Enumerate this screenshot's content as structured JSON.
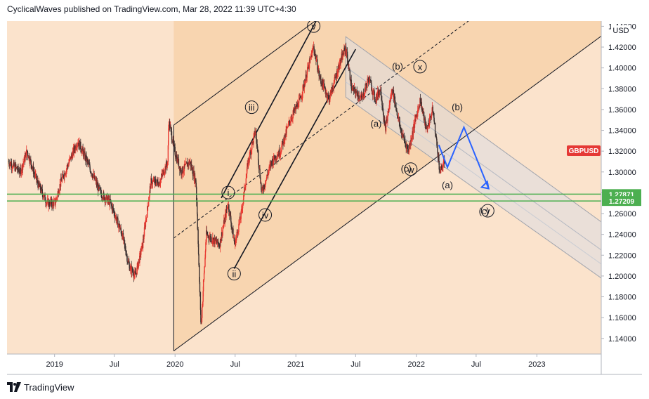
{
  "header": {
    "publisher": "CyclicalWaves published on TradingView.com, Mar 28, 2022 11:39 UTC+4:30"
  },
  "footer": {
    "brand": "TradingView"
  },
  "colors": {
    "candle_up": "#e8372f",
    "candle_down": "#3a2f2f",
    "bg_shade": "#fbe3cc",
    "channel_shade": "#f8d5b0",
    "forecast_channel": "#dcdde2",
    "support_line": "#4caf50",
    "projection": "#2962ff",
    "symbol_badge": "#e53935"
  },
  "chart_data": {
    "type": "candlestick",
    "symbol": "GBPUSD",
    "currency": "USD",
    "y_ticks": [
      "1.14000",
      "1.16000",
      "1.18000",
      "1.20000",
      "1.22000",
      "1.24000",
      "1.26000",
      "1.28000",
      "1.30000",
      "1.32000",
      "1.34000",
      "1.36000",
      "1.38000",
      "1.40000",
      "1.42000",
      "1.44000"
    ],
    "x_ticks": [
      "2019",
      "Jul",
      "2020",
      "Jul",
      "2021",
      "Jul",
      "2022",
      "Jul",
      "2023"
    ],
    "ylim": [
      1.125,
      1.445
    ],
    "x_range": [
      "2018-08-10",
      "2023-07-15"
    ],
    "price_labels": [
      {
        "value": 1.27871,
        "text": "1.27871"
      },
      {
        "value": 1.27209,
        "text": "1.27209"
      }
    ],
    "last_price_badge": "GBPUSD",
    "price_path": [
      [
        "2018-08-15",
        1.31
      ],
      [
        "2018-09-20",
        1.3
      ],
      [
        "2018-10-10",
        1.32
      ],
      [
        "2018-11-10",
        1.29
      ],
      [
        "2018-12-10",
        1.27
      ],
      [
        "2019-01-03",
        1.27
      ],
      [
        "2019-01-20",
        1.29
      ],
      [
        "2019-03-13",
        1.33
      ],
      [
        "2019-04-10",
        1.31
      ],
      [
        "2019-05-20",
        1.28
      ],
      [
        "2019-06-20",
        1.27
      ],
      [
        "2019-07-25",
        1.24
      ],
      [
        "2019-08-15",
        1.21
      ],
      [
        "2019-09-03",
        1.2
      ],
      [
        "2019-09-25",
        1.23
      ],
      [
        "2019-10-20",
        1.29
      ],
      [
        "2019-11-15",
        1.29
      ],
      [
        "2019-12-10",
        1.31
      ],
      [
        "2019-12-13",
        1.35
      ],
      [
        "2019-12-31",
        1.32
      ],
      [
        "2020-01-20",
        1.3
      ],
      [
        "2020-02-15",
        1.31
      ],
      [
        "2020-03-05",
        1.29
      ],
      [
        "2020-03-20",
        1.15
      ],
      [
        "2020-04-05",
        1.24
      ],
      [
        "2020-05-15",
        1.23
      ],
      [
        "2020-06-10",
        1.27
      ],
      [
        "2020-06-30",
        1.23
      ],
      [
        "2020-07-20",
        1.26
      ],
      [
        "2020-08-10",
        1.31
      ],
      [
        "2020-09-01",
        1.34
      ],
      [
        "2020-09-20",
        1.28
      ],
      [
        "2020-10-20",
        1.31
      ],
      [
        "2020-11-15",
        1.32
      ],
      [
        "2020-12-15",
        1.35
      ],
      [
        "2021-01-15",
        1.37
      ],
      [
        "2021-02-24",
        1.42
      ],
      [
        "2021-03-15",
        1.39
      ],
      [
        "2021-04-12",
        1.37
      ],
      [
        "2021-05-10",
        1.4
      ],
      [
        "2021-06-01",
        1.42
      ],
      [
        "2021-06-20",
        1.38
      ],
      [
        "2021-07-20",
        1.37
      ],
      [
        "2021-08-10",
        1.39
      ],
      [
        "2021-08-30",
        1.37
      ],
      [
        "2021-09-15",
        1.38
      ],
      [
        "2021-09-29",
        1.34
      ],
      [
        "2021-10-20",
        1.38
      ],
      [
        "2021-11-15",
        1.34
      ],
      [
        "2021-12-08",
        1.32
      ],
      [
        "2022-01-13",
        1.37
      ],
      [
        "2022-02-01",
        1.34
      ],
      [
        "2022-02-20",
        1.36
      ],
      [
        "2022-03-14",
        1.3
      ],
      [
        "2022-03-28",
        1.31
      ]
    ],
    "wave_labels": [
      {
        "text": "v",
        "circled": true,
        "date": "2021-02-24",
        "price": 1.4375
      },
      {
        "text": "iii",
        "circled": true,
        "date": "2020-08-20",
        "price": 1.3595
      },
      {
        "text": "i",
        "circled": true,
        "date": "2020-06-10",
        "price": 1.2775
      },
      {
        "text": "iv",
        "circled": true,
        "date": "2020-09-30",
        "price": 1.256
      },
      {
        "text": "ii",
        "circled": true,
        "date": "2020-06-28",
        "price": 1.1995
      },
      {
        "text": "x",
        "circled": true,
        "date": "2022-01-12",
        "price": 1.3985
      },
      {
        "text": "w",
        "circled": true,
        "date": "2021-12-15",
        "price": 1.3
      },
      {
        "text": "y",
        "circled": true,
        "date": "2022-08-05",
        "price": 1.26
      },
      {
        "text": "(b)",
        "circled": false,
        "date": "2021-11-05",
        "price": 1.399
      },
      {
        "text": "(a)",
        "circled": false,
        "date": "2021-09-01",
        "price": 1.344
      },
      {
        "text": "(c)",
        "circled": false,
        "date": "2021-12-01",
        "price": 1.301
      },
      {
        "text": "(b)",
        "circled": false,
        "date": "2022-05-05",
        "price": 1.36
      },
      {
        "text": "(a)",
        "circled": false,
        "date": "2022-04-05",
        "price": 1.285
      },
      {
        "text": "(c)",
        "circled": false,
        "date": "2022-07-25",
        "price": 1.26
      }
    ],
    "projection_path": [
      [
        "2022-03-10",
        1.326
      ],
      [
        "2022-04-05",
        1.3045
      ],
      [
        "2022-05-25",
        1.343
      ],
      [
        "2022-08-08",
        1.284
      ]
    ]
  }
}
